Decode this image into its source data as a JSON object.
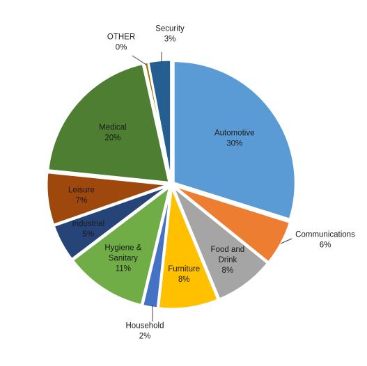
{
  "chart_data": {
    "type": "pie",
    "title": "",
    "legend": "none",
    "slices": [
      {
        "name": "Automotive",
        "value": 30,
        "label": "30%",
        "color": "#5B9BD5"
      },
      {
        "name": "Communications",
        "value": 6,
        "label": "6%",
        "color": "#ED7D31"
      },
      {
        "name": "Food and Drink",
        "value": 8,
        "label": "8%",
        "color": "#A5A5A5"
      },
      {
        "name": "Furniture",
        "value": 8,
        "label": "8%",
        "color": "#FFC000"
      },
      {
        "name": "Household",
        "value": 2,
        "label": "2%",
        "color": "#4472C4"
      },
      {
        "name": "Hygiene & Sanitary",
        "value": 11,
        "label": "11%",
        "color": "#70AD47"
      },
      {
        "name": "Industrial",
        "value": 5,
        "label": "5%",
        "color": "#264478"
      },
      {
        "name": "Leisure",
        "value": 7,
        "label": "7%",
        "color": "#9E480E"
      },
      {
        "name": "Medical",
        "value": 20,
        "label": "20%",
        "color": "#4E7E31"
      },
      {
        "name": "OTHER",
        "value": 0.5,
        "label": "0%",
        "color": "#997300"
      },
      {
        "name": "Security",
        "value": 3,
        "label": "3%",
        "color": "#255E91"
      }
    ]
  }
}
